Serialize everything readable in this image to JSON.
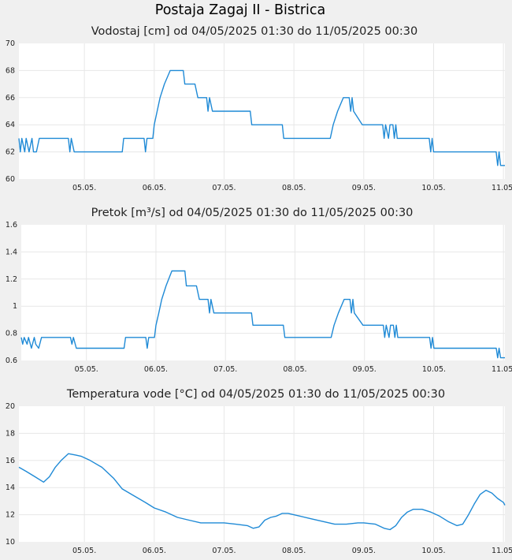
{
  "page": {
    "title": "Postaja Zagaj II - Bistrica"
  },
  "chart_data": [
    {
      "id": "vodostaj",
      "type": "line",
      "title": "Vodostaj [cm] od 04/05/2025 01:30 do 11/05/2025 00:30",
      "ylim": [
        60,
        70
      ],
      "yticks": [
        "60",
        "62",
        "64",
        "66",
        "68",
        "70"
      ],
      "xlim": [
        "04/05/2025 01:30",
        "11/05/2025 00:30"
      ],
      "xticks": [
        "05.05.",
        "06.05.",
        "07.05.",
        "08.05.",
        "09.05.",
        "10.05.",
        "11.05."
      ],
      "grid": true,
      "series": [
        {
          "color": "#1f8ad6",
          "points": [
            [
              "04/05 01:30",
              63
            ],
            [
              "04/05 02:00",
              62
            ],
            [
              "04/05 02:30",
              63
            ],
            [
              "04/05 03:30",
              62
            ],
            [
              "04/05 04:00",
              63
            ],
            [
              "04/05 05:00",
              62
            ],
            [
              "04/05 06:00",
              63
            ],
            [
              "04/05 06:30",
              62
            ],
            [
              "04/05 07:30",
              62
            ],
            [
              "04/05 08:30",
              63
            ],
            [
              "04/05 18:30",
              63
            ],
            [
              "04/05 19:00",
              62
            ],
            [
              "04/05 19:30",
              63
            ],
            [
              "04/05 20:30",
              62
            ],
            [
              "05/05 13:00",
              62
            ],
            [
              "05/05 13:30",
              63
            ],
            [
              "05/05 20:30",
              63
            ],
            [
              "05/05 21:00",
              62
            ],
            [
              "05/05 21:30",
              63
            ],
            [
              "05/05 23:30",
              63
            ],
            [
              "06/05 00:00",
              64
            ],
            [
              "06/05 01:00",
              65
            ],
            [
              "06/05 02:00",
              66
            ],
            [
              "06/05 03:30",
              67
            ],
            [
              "06/05 05:30",
              68
            ],
            [
              "06/05 10:00",
              68
            ],
            [
              "06/05 10:30",
              67
            ],
            [
              "06/05 14:00",
              67
            ],
            [
              "06/05 15:00",
              66
            ],
            [
              "06/05 18:00",
              66
            ],
            [
              "06/05 18:30",
              65
            ],
            [
              "06/05 19:00",
              66
            ],
            [
              "06/05 20:00",
              65
            ],
            [
              "07/05 00:00",
              65
            ],
            [
              "07/05 01:00",
              65
            ],
            [
              "07/05 09:00",
              65
            ],
            [
              "07/05 09:30",
              64
            ],
            [
              "07/05 20:00",
              64
            ],
            [
              "07/05 20:30",
              63
            ],
            [
              "08/05 12:30",
              63
            ],
            [
              "08/05 13:30",
              64
            ],
            [
              "08/05 15:00",
              65
            ],
            [
              "08/05 17:00",
              66
            ],
            [
              "08/05 19:00",
              66
            ],
            [
              "08/05 19:30",
              65
            ],
            [
              "08/05 20:00",
              66
            ],
            [
              "08/05 20:30",
              65
            ],
            [
              "08/05 23:30",
              64
            ],
            [
              "09/05 06:30",
              64
            ],
            [
              "09/05 07:00",
              63
            ],
            [
              "09/05 07:30",
              64
            ],
            [
              "09/05 08:30",
              63
            ],
            [
              "09/05 09:00",
              64
            ],
            [
              "09/05 10:00",
              64
            ],
            [
              "09/05 10:30",
              63
            ],
            [
              "09/05 11:00",
              64
            ],
            [
              "09/05 11:30",
              63
            ],
            [
              "09/05 22:30",
              63
            ],
            [
              "09/05 23:00",
              62
            ],
            [
              "09/05 23:30",
              63
            ],
            [
              "10/05 00:00",
              62
            ],
            [
              "10/05 21:30",
              62
            ],
            [
              "10/05 22:00",
              61
            ],
            [
              "10/05 22:30",
              62
            ],
            [
              "10/05 23:00",
              61
            ],
            [
              "11/05 00:30",
              61
            ]
          ]
        }
      ]
    },
    {
      "id": "pretok",
      "type": "line",
      "title": "Pretok [m³/s] od 04/05/2025 01:30 do 11/05/2025 00:30",
      "ylim": [
        0.6,
        1.6
      ],
      "yticks": [
        "0.6",
        "0.8",
        "1",
        "1.2",
        "1.4",
        "1.6"
      ],
      "xlim": [
        "04/05/2025 01:30",
        "11/05/2025 00:30"
      ],
      "xticks": [
        "05.05.",
        "06.05.",
        "07.05.",
        "08.05.",
        "09.05.",
        "10.05.",
        "11.05."
      ],
      "grid": true,
      "series": [
        {
          "color": "#1f8ad6",
          "points": [
            [
              "04/05 01:30",
              0.77
            ],
            [
              "04/05 02:00",
              0.72
            ],
            [
              "04/05 02:30",
              0.77
            ],
            [
              "04/05 03:30",
              0.72
            ],
            [
              "04/05 04:00",
              0.77
            ],
            [
              "04/05 05:00",
              0.69
            ],
            [
              "04/05 06:00",
              0.77
            ],
            [
              "04/05 06:30",
              0.72
            ],
            [
              "04/05 07:30",
              0.69
            ],
            [
              "04/05 08:30",
              0.77
            ],
            [
              "04/05 18:30",
              0.77
            ],
            [
              "04/05 19:00",
              0.72
            ],
            [
              "04/05 19:30",
              0.77
            ],
            [
              "04/05 20:30",
              0.69
            ],
            [
              "05/05 13:00",
              0.69
            ],
            [
              "05/05 13:30",
              0.77
            ],
            [
              "05/05 20:30",
              0.77
            ],
            [
              "05/05 21:00",
              0.69
            ],
            [
              "05/05 21:30",
              0.77
            ],
            [
              "05/05 23:30",
              0.77
            ],
            [
              "06/05 00:00",
              0.86
            ],
            [
              "06/05 01:00",
              0.95
            ],
            [
              "06/05 02:00",
              1.05
            ],
            [
              "06/05 03:30",
              1.15
            ],
            [
              "06/05 05:30",
              1.26
            ],
            [
              "06/05 10:00",
              1.26
            ],
            [
              "06/05 10:30",
              1.15
            ],
            [
              "06/05 14:00",
              1.15
            ],
            [
              "06/05 15:00",
              1.05
            ],
            [
              "06/05 18:00",
              1.05
            ],
            [
              "06/05 18:30",
              0.95
            ],
            [
              "06/05 19:00",
              1.05
            ],
            [
              "06/05 20:00",
              0.95
            ],
            [
              "07/05 00:00",
              0.95
            ],
            [
              "07/05 01:00",
              0.95
            ],
            [
              "07/05 09:00",
              0.95
            ],
            [
              "07/05 09:30",
              0.86
            ],
            [
              "07/05 20:00",
              0.86
            ],
            [
              "07/05 20:30",
              0.77
            ],
            [
              "08/05 12:30",
              0.77
            ],
            [
              "08/05 13:30",
              0.86
            ],
            [
              "08/05 15:00",
              0.95
            ],
            [
              "08/05 17:00",
              1.05
            ],
            [
              "08/05 19:00",
              1.05
            ],
            [
              "08/05 19:30",
              0.95
            ],
            [
              "08/05 20:00",
              1.05
            ],
            [
              "08/05 20:30",
              0.95
            ],
            [
              "08/05 23:30",
              0.86
            ],
            [
              "09/05 06:30",
              0.86
            ],
            [
              "09/05 07:00",
              0.77
            ],
            [
              "09/05 07:30",
              0.86
            ],
            [
              "09/05 08:30",
              0.77
            ],
            [
              "09/05 09:00",
              0.86
            ],
            [
              "09/05 10:00",
              0.86
            ],
            [
              "09/05 10:30",
              0.77
            ],
            [
              "09/05 11:00",
              0.86
            ],
            [
              "09/05 11:30",
              0.77
            ],
            [
              "09/05 22:30",
              0.77
            ],
            [
              "09/05 23:00",
              0.69
            ],
            [
              "09/05 23:30",
              0.77
            ],
            [
              "10/05 00:00",
              0.69
            ],
            [
              "10/05 21:30",
              0.69
            ],
            [
              "10/05 22:00",
              0.62
            ],
            [
              "10/05 22:30",
              0.69
            ],
            [
              "10/05 23:00",
              0.62
            ],
            [
              "11/05 00:30",
              0.62
            ]
          ]
        }
      ]
    },
    {
      "id": "temperatura",
      "type": "line",
      "title": "Temperatura vode [°C] od 04/05/2025 01:30 do 11/05/2025 00:30",
      "ylim": [
        10,
        20
      ],
      "yticks": [
        "10",
        "12",
        "14",
        "16",
        "18",
        "20"
      ],
      "xlim": [
        "04/05/2025 01:30",
        "11/05/2025 00:30"
      ],
      "xticks": [
        "05.05.",
        "06.05.",
        "07.05.",
        "08.05.",
        "09.05.",
        "10.05.",
        "11.05."
      ],
      "grid": true,
      "series": [
        {
          "color": "#1f8ad6",
          "points": [
            [
              "04/05 01:30",
              15.5
            ],
            [
              "04/05 04:00",
              15.2
            ],
            [
              "04/05 07:00",
              14.8
            ],
            [
              "04/05 10:00",
              14.4
            ],
            [
              "04/05 12:00",
              14.8
            ],
            [
              "04/05 14:00",
              15.5
            ],
            [
              "04/05 16:00",
              16.0
            ],
            [
              "04/05 18:30",
              16.5
            ],
            [
              "04/05 21:00",
              16.4
            ],
            [
              "04/05 23:00",
              16.3
            ],
            [
              "05/05 02:00",
              16.0
            ],
            [
              "05/05 06:00",
              15.5
            ],
            [
              "05/05 10:00",
              14.7
            ],
            [
              "05/05 13:00",
              13.9
            ],
            [
              "05/05 17:00",
              13.4
            ],
            [
              "05/05 21:00",
              12.9
            ],
            [
              "06/05 00:00",
              12.5
            ],
            [
              "06/05 04:00",
              12.2
            ],
            [
              "06/05 08:00",
              11.8
            ],
            [
              "06/05 12:00",
              11.6
            ],
            [
              "06/05 16:00",
              11.4
            ],
            [
              "06/05 20:00",
              11.4
            ],
            [
              "07/05 00:00",
              11.4
            ],
            [
              "07/05 04:00",
              11.3
            ],
            [
              "07/05 08:00",
              11.2
            ],
            [
              "07/05 10:00",
              11.0
            ],
            [
              "07/05 12:00",
              11.1
            ],
            [
              "07/05 14:00",
              11.6
            ],
            [
              "07/05 16:00",
              11.8
            ],
            [
              "07/05 18:00",
              11.9
            ],
            [
              "07/05 20:00",
              12.1
            ],
            [
              "07/05 22:00",
              12.1
            ],
            [
              "08/05 02:00",
              11.9
            ],
            [
              "08/05 06:00",
              11.7
            ],
            [
              "08/05 10:00",
              11.5
            ],
            [
              "08/05 14:00",
              11.3
            ],
            [
              "08/05 18:00",
              11.3
            ],
            [
              "08/05 22:00",
              11.4
            ],
            [
              "09/05 00:00",
              11.4
            ],
            [
              "09/05 04:00",
              11.3
            ],
            [
              "09/05 07:00",
              11.0
            ],
            [
              "09/05 09:00",
              10.9
            ],
            [
              "09/05 11:00",
              11.2
            ],
            [
              "09/05 13:00",
              11.8
            ],
            [
              "09/05 15:00",
              12.2
            ],
            [
              "09/05 17:00",
              12.4
            ],
            [
              "09/05 20:00",
              12.4
            ],
            [
              "09/05 23:00",
              12.2
            ],
            [
              "10/05 02:00",
              11.9
            ],
            [
              "10/05 05:00",
              11.5
            ],
            [
              "10/05 08:00",
              11.2
            ],
            [
              "10/05 10:00",
              11.3
            ],
            [
              "10/05 12:00",
              12.0
            ],
            [
              "10/05 14:00",
              12.8
            ],
            [
              "10/05 16:00",
              13.5
            ],
            [
              "10/05 18:00",
              13.8
            ],
            [
              "10/05 20:00",
              13.6
            ],
            [
              "10/05 22:00",
              13.2
            ],
            [
              "11/05 00:00",
              12.9
            ],
            [
              "11/05 00:30",
              12.7
            ]
          ]
        }
      ]
    }
  ]
}
